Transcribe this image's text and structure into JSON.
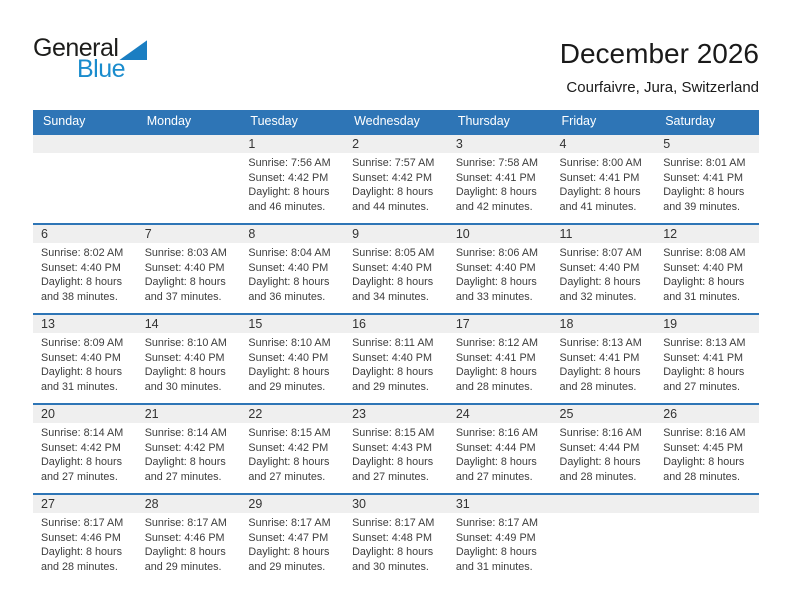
{
  "logo": {
    "general": "General",
    "blue": "Blue"
  },
  "header": {
    "title": "December 2026",
    "subtitle": "Courfaivre, Jura, Switzerland"
  },
  "colors": {
    "header_bg": "#2e75b6",
    "week_divider": "#2e75b6",
    "day_band_bg": "#efefef",
    "logo_blue": "#1a8ccd",
    "logo_triangle": "#1a7ec2"
  },
  "weekdays": [
    "Sunday",
    "Monday",
    "Tuesday",
    "Wednesday",
    "Thursday",
    "Friday",
    "Saturday"
  ],
  "weeks": [
    [
      {
        "day": "",
        "lines": []
      },
      {
        "day": "",
        "lines": []
      },
      {
        "day": "1",
        "lines": [
          "Sunrise: 7:56 AM",
          "Sunset: 4:42 PM",
          "Daylight: 8 hours",
          "and 46 minutes."
        ]
      },
      {
        "day": "2",
        "lines": [
          "Sunrise: 7:57 AM",
          "Sunset: 4:42 PM",
          "Daylight: 8 hours",
          "and 44 minutes."
        ]
      },
      {
        "day": "3",
        "lines": [
          "Sunrise: 7:58 AM",
          "Sunset: 4:41 PM",
          "Daylight: 8 hours",
          "and 42 minutes."
        ]
      },
      {
        "day": "4",
        "lines": [
          "Sunrise: 8:00 AM",
          "Sunset: 4:41 PM",
          "Daylight: 8 hours",
          "and 41 minutes."
        ]
      },
      {
        "day": "5",
        "lines": [
          "Sunrise: 8:01 AM",
          "Sunset: 4:41 PM",
          "Daylight: 8 hours",
          "and 39 minutes."
        ]
      }
    ],
    [
      {
        "day": "6",
        "lines": [
          "Sunrise: 8:02 AM",
          "Sunset: 4:40 PM",
          "Daylight: 8 hours",
          "and 38 minutes."
        ]
      },
      {
        "day": "7",
        "lines": [
          "Sunrise: 8:03 AM",
          "Sunset: 4:40 PM",
          "Daylight: 8 hours",
          "and 37 minutes."
        ]
      },
      {
        "day": "8",
        "lines": [
          "Sunrise: 8:04 AM",
          "Sunset: 4:40 PM",
          "Daylight: 8 hours",
          "and 36 minutes."
        ]
      },
      {
        "day": "9",
        "lines": [
          "Sunrise: 8:05 AM",
          "Sunset: 4:40 PM",
          "Daylight: 8 hours",
          "and 34 minutes."
        ]
      },
      {
        "day": "10",
        "lines": [
          "Sunrise: 8:06 AM",
          "Sunset: 4:40 PM",
          "Daylight: 8 hours",
          "and 33 minutes."
        ]
      },
      {
        "day": "11",
        "lines": [
          "Sunrise: 8:07 AM",
          "Sunset: 4:40 PM",
          "Daylight: 8 hours",
          "and 32 minutes."
        ]
      },
      {
        "day": "12",
        "lines": [
          "Sunrise: 8:08 AM",
          "Sunset: 4:40 PM",
          "Daylight: 8 hours",
          "and 31 minutes."
        ]
      }
    ],
    [
      {
        "day": "13",
        "lines": [
          "Sunrise: 8:09 AM",
          "Sunset: 4:40 PM",
          "Daylight: 8 hours",
          "and 31 minutes."
        ]
      },
      {
        "day": "14",
        "lines": [
          "Sunrise: 8:10 AM",
          "Sunset: 4:40 PM",
          "Daylight: 8 hours",
          "and 30 minutes."
        ]
      },
      {
        "day": "15",
        "lines": [
          "Sunrise: 8:10 AM",
          "Sunset: 4:40 PM",
          "Daylight: 8 hours",
          "and 29 minutes."
        ]
      },
      {
        "day": "16",
        "lines": [
          "Sunrise: 8:11 AM",
          "Sunset: 4:40 PM",
          "Daylight: 8 hours",
          "and 29 minutes."
        ]
      },
      {
        "day": "17",
        "lines": [
          "Sunrise: 8:12 AM",
          "Sunset: 4:41 PM",
          "Daylight: 8 hours",
          "and 28 minutes."
        ]
      },
      {
        "day": "18",
        "lines": [
          "Sunrise: 8:13 AM",
          "Sunset: 4:41 PM",
          "Daylight: 8 hours",
          "and 28 minutes."
        ]
      },
      {
        "day": "19",
        "lines": [
          "Sunrise: 8:13 AM",
          "Sunset: 4:41 PM",
          "Daylight: 8 hours",
          "and 27 minutes."
        ]
      }
    ],
    [
      {
        "day": "20",
        "lines": [
          "Sunrise: 8:14 AM",
          "Sunset: 4:42 PM",
          "Daylight: 8 hours",
          "and 27 minutes."
        ]
      },
      {
        "day": "21",
        "lines": [
          "Sunrise: 8:14 AM",
          "Sunset: 4:42 PM",
          "Daylight: 8 hours",
          "and 27 minutes."
        ]
      },
      {
        "day": "22",
        "lines": [
          "Sunrise: 8:15 AM",
          "Sunset: 4:42 PM",
          "Daylight: 8 hours",
          "and 27 minutes."
        ]
      },
      {
        "day": "23",
        "lines": [
          "Sunrise: 8:15 AM",
          "Sunset: 4:43 PM",
          "Daylight: 8 hours",
          "and 27 minutes."
        ]
      },
      {
        "day": "24",
        "lines": [
          "Sunrise: 8:16 AM",
          "Sunset: 4:44 PM",
          "Daylight: 8 hours",
          "and 27 minutes."
        ]
      },
      {
        "day": "25",
        "lines": [
          "Sunrise: 8:16 AM",
          "Sunset: 4:44 PM",
          "Daylight: 8 hours",
          "and 28 minutes."
        ]
      },
      {
        "day": "26",
        "lines": [
          "Sunrise: 8:16 AM",
          "Sunset: 4:45 PM",
          "Daylight: 8 hours",
          "and 28 minutes."
        ]
      }
    ],
    [
      {
        "day": "27",
        "lines": [
          "Sunrise: 8:17 AM",
          "Sunset: 4:46 PM",
          "Daylight: 8 hours",
          "and 28 minutes."
        ]
      },
      {
        "day": "28",
        "lines": [
          "Sunrise: 8:17 AM",
          "Sunset: 4:46 PM",
          "Daylight: 8 hours",
          "and 29 minutes."
        ]
      },
      {
        "day": "29",
        "lines": [
          "Sunrise: 8:17 AM",
          "Sunset: 4:47 PM",
          "Daylight: 8 hours",
          "and 29 minutes."
        ]
      },
      {
        "day": "30",
        "lines": [
          "Sunrise: 8:17 AM",
          "Sunset: 4:48 PM",
          "Daylight: 8 hours",
          "and 30 minutes."
        ]
      },
      {
        "day": "31",
        "lines": [
          "Sunrise: 8:17 AM",
          "Sunset: 4:49 PM",
          "Daylight: 8 hours",
          "and 31 minutes."
        ]
      },
      {
        "day": "",
        "lines": []
      },
      {
        "day": "",
        "lines": []
      }
    ]
  ]
}
